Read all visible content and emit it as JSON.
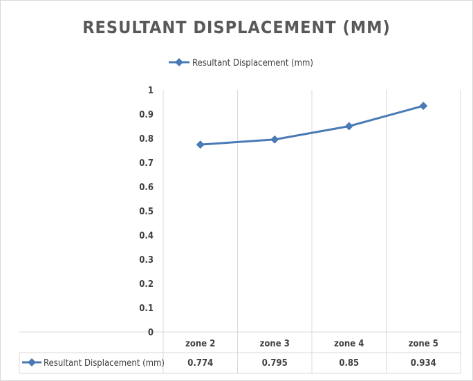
{
  "chart_data": {
    "type": "line",
    "title": "RESULTANT DISPLACEMENT (MM)",
    "xlabel": "",
    "ylabel": "",
    "categories": [
      "zone 2",
      "zone 3",
      "zone 4",
      "zone 5"
    ],
    "series": [
      {
        "name": "Resultant Displacement (mm)",
        "values": [
          0.774,
          0.795,
          0.85,
          0.934
        ],
        "color": "#4a7ab5"
      }
    ],
    "ylim": [
      0,
      1
    ],
    "yticks": [
      "0",
      "0.1",
      "0.2",
      "0.3",
      "0.4",
      "0.5",
      "0.6",
      "0.7",
      "0.8",
      "0.9",
      "1"
    ],
    "grid": "vertical",
    "legend": "top",
    "data_table": {
      "label": "Resultant Displacement (mm)",
      "values": [
        "0.774",
        "0.795",
        "0.85",
        "0.934"
      ]
    }
  }
}
